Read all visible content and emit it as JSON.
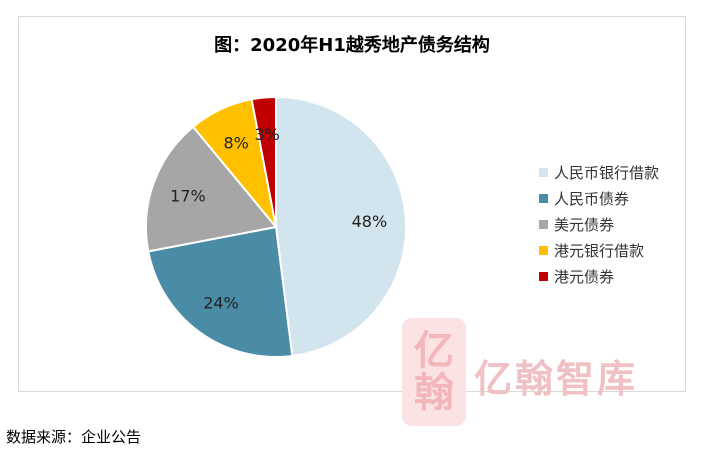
{
  "source_note": "数据来源：企业公告",
  "watermark": {
    "text": "亿翰智库",
    "seal_chars": [
      "亿",
      "翰"
    ]
  },
  "colors": {
    "人民币银行借款": "#d2e4ed",
    "人民币债券": "#4a8ca5",
    "美元债券": "#a6a6a6",
    "港元银行借款": "#ffc000",
    "港元债券": "#c00000"
  },
  "chart_data": {
    "type": "pie",
    "title": "图：2020年H1越秀地产债务结构",
    "legend_position": "right",
    "categories": [
      "人民币银行借款",
      "人民币债券",
      "美元债券",
      "港元银行借款",
      "港元债券"
    ],
    "values": [
      48,
      24,
      17,
      8,
      3
    ],
    "labels": [
      "48%",
      "24%",
      "17%",
      "8%",
      "3%"
    ],
    "unit": "%"
  }
}
